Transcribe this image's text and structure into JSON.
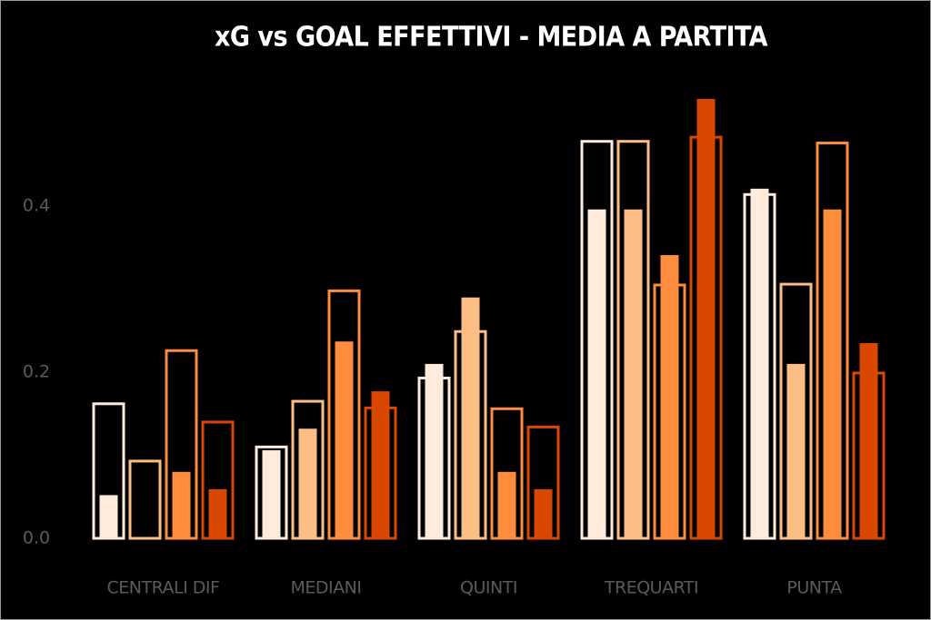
{
  "chart_data": {
    "type": "bar",
    "title": "xG vs GOAL EFFETTIVI - MEDIA A PARTITA",
    "categories": [
      "CENTRALI DIF",
      "MEDIANI",
      "QUINTI",
      "TREQUARTI",
      "PUNTA"
    ],
    "series": [
      {
        "color": "#feebdb",
        "xg": [
          0.162,
          0.11,
          0.193,
          0.478,
          0.414
        ],
        "values": [
          0.052,
          0.106,
          0.21,
          0.396,
          0.421
        ]
      },
      {
        "color": "#fdbe85",
        "xg": [
          0.093,
          0.165,
          0.249,
          0.478,
          0.306
        ],
        "values": [
          0,
          0.132,
          0.29,
          0.396,
          0.21
        ]
      },
      {
        "color": "#fd8d3c",
        "xg": [
          0.226,
          0.298,
          0.156,
          0.305,
          0.476
        ],
        "values": [
          0.08,
          0.237,
          0.08,
          0.341,
          0.396
        ]
      },
      {
        "color": "#d94701",
        "xg": [
          0.14,
          0.157,
          0.134,
          0.483,
          0.199
        ],
        "values": [
          0.059,
          0.177,
          0.059,
          0.529,
          0.235
        ]
      }
    ],
    "ylim": [
      0,
      0.54
    ],
    "yticks": [
      {
        "value": 0,
        "label": "0.0"
      },
      0.2,
      0.4
    ]
  }
}
